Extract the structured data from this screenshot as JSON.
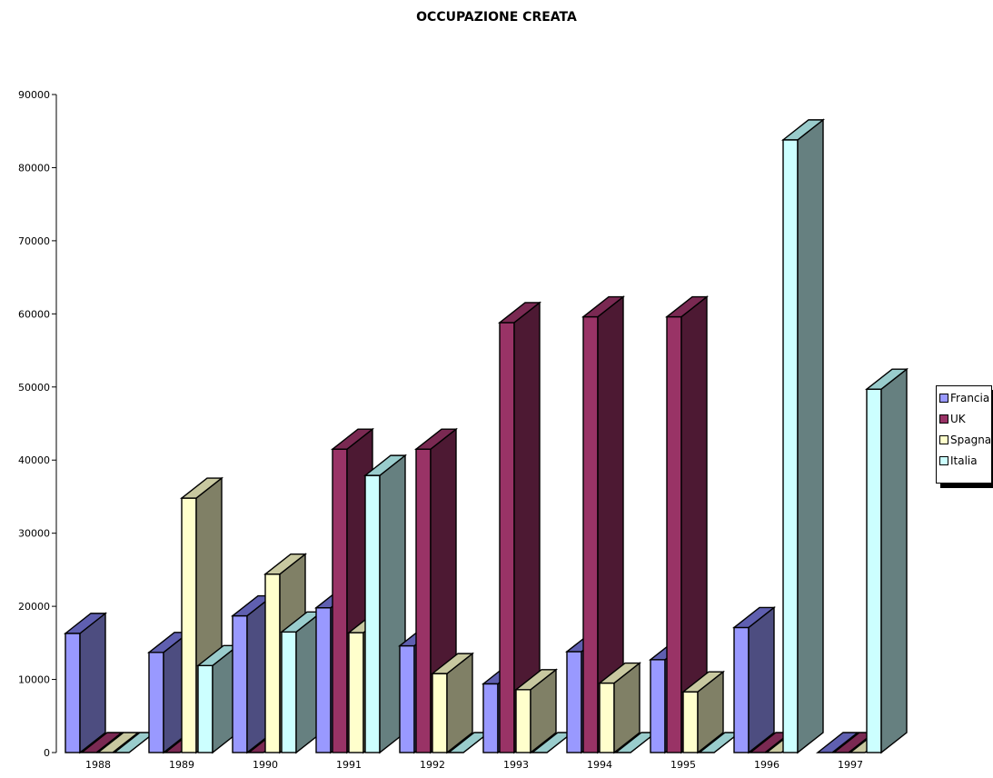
{
  "chart_data": {
    "type": "bar",
    "title": "OCCUPAZIONE CREATA",
    "xlabel": "",
    "ylabel": "",
    "categories": [
      "1988",
      "1989",
      "1990",
      "1991",
      "1992",
      "1993",
      "1994",
      "1995",
      "1996",
      "1997"
    ],
    "ylim": [
      0,
      90000
    ],
    "yticks": [
      0,
      10000,
      20000,
      30000,
      40000,
      50000,
      60000,
      70000,
      80000,
      90000
    ],
    "three_d": true,
    "legend_position": "right",
    "series": [
      {
        "name": "Francia",
        "color": "#9999ff",
        "side_color": "#4d4d80",
        "top_color": "#5f5fb0",
        "values": [
          16300,
          13700,
          18700,
          19800,
          14600,
          9400,
          13800,
          12700,
          17100,
          0
        ]
      },
      {
        "name": "UK",
        "color": "#993366",
        "side_color": "#4d1933",
        "top_color": "#7a2952",
        "values": [
          0,
          0,
          0,
          41500,
          41500,
          58800,
          59600,
          59600,
          0,
          0
        ]
      },
      {
        "name": "Spagna",
        "color": "#ffffcc",
        "side_color": "#808066",
        "top_color": "#c8c8a0",
        "values": [
          0,
          34800,
          24400,
          16400,
          10800,
          8600,
          9500,
          8300,
          0,
          0
        ]
      },
      {
        "name": "Italia",
        "color": "#ccffff",
        "side_color": "#668080",
        "top_color": "#99cccc",
        "values": [
          0,
          11900,
          16500,
          37900,
          0,
          0,
          0,
          0,
          83800,
          49700
        ]
      }
    ]
  }
}
